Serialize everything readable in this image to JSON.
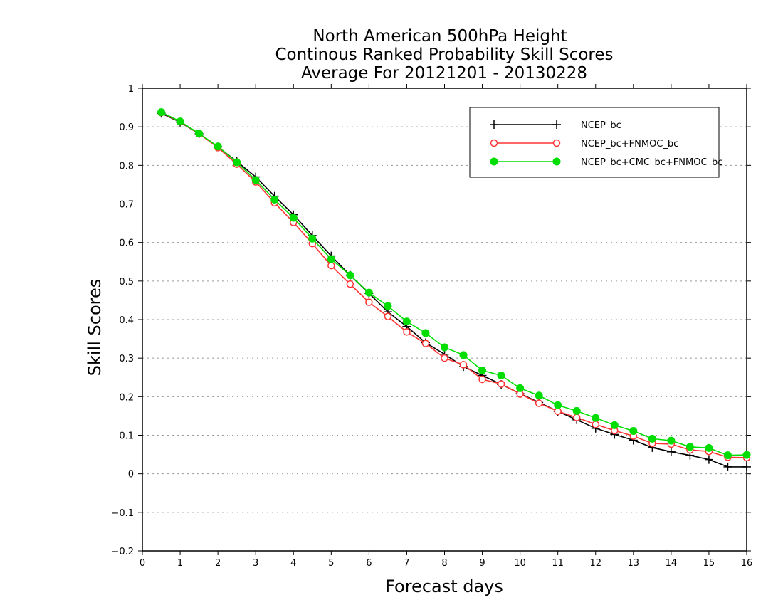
{
  "chart_data": {
    "type": "line",
    "title": [
      "North American 500hPa Height",
      "Continous Ranked Probability Skill Scores",
      "Average For 20121201 - 20130228"
    ],
    "xlabel": "Forecast days",
    "ylabel": "Skill Scores",
    "xlim": [
      0,
      16
    ],
    "ylim": [
      -0.2,
      1
    ],
    "xticks": [
      "0",
      "1",
      "2",
      "3",
      "4",
      "5",
      "6",
      "7",
      "8",
      "9",
      "10",
      "11",
      "12",
      "13",
      "14",
      "15",
      "16"
    ],
    "yticks": [
      "−0.2",
      "−0.1",
      "0",
      "0.1",
      "0.2",
      "0.3",
      "0.4",
      "0.5",
      "0.6",
      "0.7",
      "0.8",
      "0.9",
      "1"
    ],
    "grid": true,
    "legend_position": "top-right",
    "x": [
      0.5,
      1,
      1.5,
      2,
      2.5,
      3,
      3.5,
      4,
      4.5,
      5,
      5.5,
      6,
      6.5,
      7,
      7.5,
      8,
      8.5,
      9,
      9.5,
      10,
      10.5,
      11,
      11.5,
      12,
      12.5,
      13,
      13.5,
      14,
      14.5,
      15,
      15.5,
      16
    ],
    "series": [
      {
        "name": "NCEP_bc",
        "color": "#000000",
        "marker": "plus",
        "values": [
          0.935,
          0.912,
          0.882,
          0.848,
          0.81,
          0.77,
          0.72,
          0.672,
          0.618,
          0.565,
          0.515,
          0.468,
          0.42,
          0.382,
          0.34,
          0.31,
          0.278,
          0.255,
          0.232,
          0.208,
          0.185,
          0.162,
          0.14,
          0.118,
          0.102,
          0.087,
          0.068,
          0.057,
          0.048,
          0.037,
          0.018,
          0.018
        ]
      },
      {
        "name": "NCEP_bc+FNMOC_bc",
        "color": "#ff3333",
        "marker": "open-circle",
        "values": [
          0.937,
          0.913,
          0.882,
          0.846,
          0.803,
          0.757,
          0.703,
          0.652,
          0.597,
          0.54,
          0.492,
          0.445,
          0.408,
          0.368,
          0.338,
          0.3,
          0.283,
          0.245,
          0.233,
          0.207,
          0.183,
          0.162,
          0.146,
          0.128,
          0.112,
          0.098,
          0.079,
          0.077,
          0.062,
          0.058,
          0.043,
          0.042
        ]
      },
      {
        "name": "NCEP_bc+CMC_bc+FNMOC_bc",
        "color": "#00dd00",
        "marker": "filled-circle",
        "values": [
          0.938,
          0.914,
          0.883,
          0.849,
          0.808,
          0.762,
          0.711,
          0.664,
          0.61,
          0.557,
          0.515,
          0.47,
          0.435,
          0.395,
          0.365,
          0.328,
          0.308,
          0.268,
          0.255,
          0.222,
          0.203,
          0.178,
          0.163,
          0.145,
          0.126,
          0.111,
          0.091,
          0.086,
          0.07,
          0.067,
          0.048,
          0.049
        ]
      }
    ]
  }
}
